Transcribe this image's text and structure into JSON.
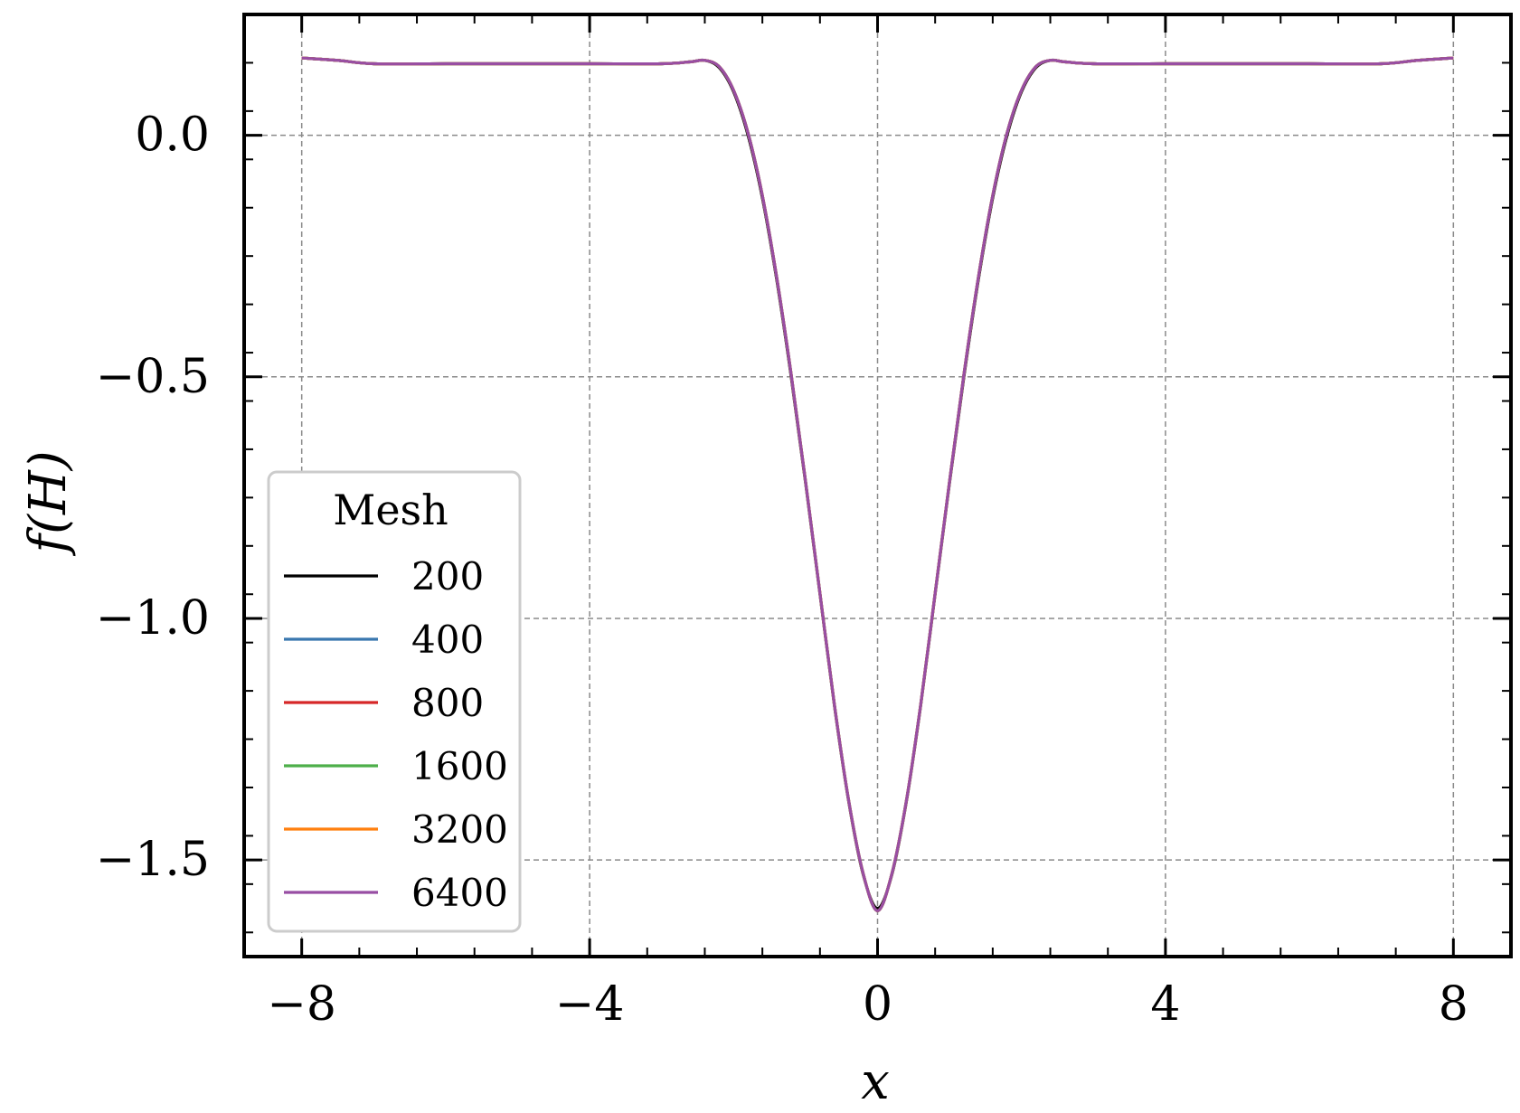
{
  "chart_data": {
    "type": "line",
    "title": "",
    "xlabel": "x",
    "ylabel": "f(H)",
    "xlim": [
      -8.8,
      8.8
    ],
    "ylim": [
      -1.7,
      0.25
    ],
    "xticks": [
      -8,
      -4,
      0,
      4,
      8
    ],
    "xtick_labels": [
      "−8",
      "−4",
      "0",
      "4",
      "8"
    ],
    "yticks": [
      0.0,
      -0.5,
      -1.0,
      -1.5
    ],
    "ytick_labels": [
      "0.0",
      "−0.5",
      "−1.0",
      "−1.5"
    ],
    "grid": true,
    "legend": {
      "title": "Mesh",
      "position": "lower-left"
    },
    "x": [
      -8,
      -7.5,
      -7,
      -6,
      -5,
      -4,
      -3,
      -2.6,
      -2.4,
      -2.2,
      -2.0,
      -1.8,
      -1.6,
      -1.4,
      -1.2,
      -1.0,
      -0.8,
      -0.6,
      -0.4,
      -0.2,
      0,
      0.2,
      0.4,
      0.6,
      0.8,
      1.0,
      1.2,
      1.4,
      1.6,
      1.8,
      2.0,
      2.2,
      2.4,
      2.6,
      3,
      4,
      5,
      6,
      7,
      7.5,
      8
    ],
    "series": [
      {
        "name": "200",
        "color": "#000000",
        "values": [
          0.16,
          0.155,
          0.148,
          0.148,
          0.148,
          0.148,
          0.148,
          0.152,
          0.155,
          0.14,
          0.09,
          0.0,
          -0.13,
          -0.3,
          -0.5,
          -0.72,
          -0.95,
          -1.18,
          -1.38,
          -1.53,
          -1.6,
          -1.53,
          -1.38,
          -1.18,
          -0.95,
          -0.72,
          -0.5,
          -0.3,
          -0.13,
          0.0,
          0.09,
          0.14,
          0.155,
          0.152,
          0.148,
          0.148,
          0.148,
          0.148,
          0.148,
          0.155,
          0.16
        ]
      },
      {
        "name": "400",
        "color": "#3977af",
        "values": [
          0.16,
          0.155,
          0.148,
          0.148,
          0.148,
          0.148,
          0.148,
          0.152,
          0.155,
          0.142,
          0.093,
          0.005,
          -0.125,
          -0.295,
          -0.495,
          -0.717,
          -0.948,
          -1.178,
          -1.378,
          -1.528,
          -1.605,
          -1.528,
          -1.378,
          -1.178,
          -0.948,
          -0.717,
          -0.495,
          -0.295,
          -0.125,
          0.005,
          0.093,
          0.142,
          0.155,
          0.152,
          0.148,
          0.148,
          0.148,
          0.148,
          0.148,
          0.155,
          0.16
        ]
      },
      {
        "name": "800",
        "color": "#d62728",
        "values": [
          0.16,
          0.155,
          0.148,
          0.148,
          0.148,
          0.148,
          0.148,
          0.152,
          0.155,
          0.142,
          0.093,
          0.005,
          -0.125,
          -0.295,
          -0.495,
          -0.717,
          -0.948,
          -1.178,
          -1.378,
          -1.528,
          -1.605,
          -1.528,
          -1.378,
          -1.178,
          -0.948,
          -0.717,
          -0.495,
          -0.295,
          -0.125,
          0.005,
          0.093,
          0.142,
          0.155,
          0.152,
          0.148,
          0.148,
          0.148,
          0.148,
          0.148,
          0.155,
          0.16
        ]
      },
      {
        "name": "1600",
        "color": "#4daf4a",
        "values": [
          0.16,
          0.155,
          0.148,
          0.148,
          0.148,
          0.148,
          0.148,
          0.152,
          0.155,
          0.142,
          0.093,
          0.005,
          -0.125,
          -0.295,
          -0.495,
          -0.717,
          -0.948,
          -1.178,
          -1.378,
          -1.528,
          -1.605,
          -1.528,
          -1.378,
          -1.178,
          -0.948,
          -0.717,
          -0.495,
          -0.295,
          -0.125,
          0.005,
          0.093,
          0.142,
          0.155,
          0.152,
          0.148,
          0.148,
          0.148,
          0.148,
          0.148,
          0.155,
          0.16
        ]
      },
      {
        "name": "3200",
        "color": "#ff7f0e",
        "values": [
          0.16,
          0.155,
          0.148,
          0.148,
          0.148,
          0.148,
          0.148,
          0.152,
          0.155,
          0.142,
          0.093,
          0.005,
          -0.125,
          -0.295,
          -0.495,
          -0.717,
          -0.948,
          -1.178,
          -1.378,
          -1.528,
          -1.605,
          -1.528,
          -1.378,
          -1.178,
          -0.948,
          -0.717,
          -0.495,
          -0.295,
          -0.125,
          0.005,
          0.093,
          0.142,
          0.155,
          0.152,
          0.148,
          0.148,
          0.148,
          0.148,
          0.148,
          0.155,
          0.16
        ]
      },
      {
        "name": "6400",
        "color": "#984ea3",
        "values": [
          0.16,
          0.155,
          0.148,
          0.148,
          0.148,
          0.148,
          0.148,
          0.152,
          0.155,
          0.142,
          0.093,
          0.005,
          -0.125,
          -0.295,
          -0.495,
          -0.717,
          -0.948,
          -1.178,
          -1.378,
          -1.528,
          -1.605,
          -1.528,
          -1.378,
          -1.178,
          -0.948,
          -0.717,
          -0.495,
          -0.295,
          -0.125,
          0.005,
          0.093,
          0.142,
          0.155,
          0.152,
          0.148,
          0.148,
          0.148,
          0.148,
          0.148,
          0.155,
          0.16
        ]
      }
    ]
  }
}
